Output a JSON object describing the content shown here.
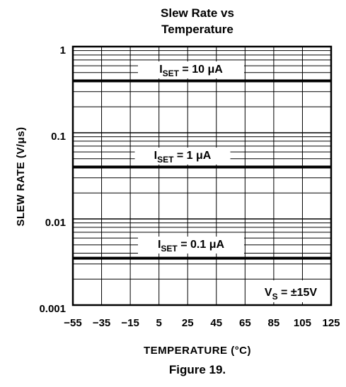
{
  "chart_data": {
    "type": "line",
    "title_line1": "Slew Rate vs",
    "title_line2": "Temperature",
    "xlabel": "TEMPERATURE (°C)",
    "ylabel": "SLEW RATE (V/μs)",
    "x_scale": "linear",
    "y_scale": "log",
    "xlim": [
      -55,
      125
    ],
    "ylim": [
      0.001,
      1
    ],
    "x_ticks": [
      "−55",
      "−35",
      "−15",
      "5",
      "25",
      "45",
      "65",
      "85",
      "105",
      "125"
    ],
    "y_ticks": [
      "0.001",
      "0.01",
      "0.1",
      "1"
    ],
    "grid": true,
    "caption": "Figure 19.",
    "annotation": {
      "main": "V",
      "sub": "S",
      "rest": " = ±15V"
    },
    "series": [
      {
        "label_main": "I",
        "label_sub": "SET",
        "label_rest": " = 10 μA",
        "x": [
          -55,
          125
        ],
        "y": [
          0.4,
          0.4
        ]
      },
      {
        "label_main": "I",
        "label_sub": "SET",
        "label_rest": " = 1 μA",
        "x": [
          -55,
          125
        ],
        "y": [
          0.04,
          0.04
        ]
      },
      {
        "label_main": "I",
        "label_sub": "SET",
        "label_rest": " = 0.1 μA",
        "x": [
          -55,
          125
        ],
        "y": [
          0.0035,
          0.0035
        ]
      }
    ]
  }
}
